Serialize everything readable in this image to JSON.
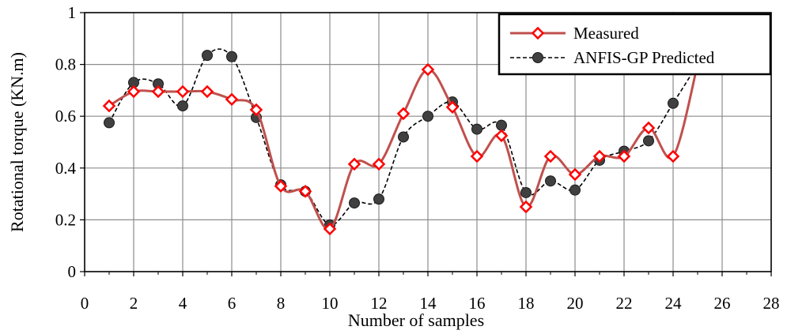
{
  "chart_data": {
    "type": "line",
    "title": "",
    "xlabel": "Number of samples",
    "ylabel": "Rotational torque (KN.m)",
    "xlim": [
      0,
      28
    ],
    "ylim": [
      0,
      1
    ],
    "x_ticks": [
      0,
      2,
      4,
      6,
      8,
      10,
      12,
      14,
      16,
      18,
      20,
      22,
      24,
      26,
      28
    ],
    "y_ticks": [
      0,
      0.2,
      0.4,
      0.6,
      0.8,
      1
    ],
    "x_tick_labels": [
      "0",
      "2",
      "4",
      "6",
      "8",
      "10",
      "12",
      "14",
      "16",
      "18",
      "20",
      "22",
      "24",
      "26",
      "28"
    ],
    "y_tick_labels": [
      "0",
      "0.2",
      "0.4",
      "0.6",
      "0.8",
      "1"
    ],
    "grid": true,
    "legend_position": "top-right",
    "x": [
      1,
      2,
      3,
      4,
      5,
      6,
      7,
      8,
      9,
      10,
      11,
      12,
      13,
      14,
      15,
      16,
      17,
      18,
      19,
      20,
      21,
      22,
      23,
      24,
      25
    ],
    "series": [
      {
        "name": "Measured",
        "style": "smooth line with diamond markers",
        "color": "#c0504d",
        "marker_color": "#ff0000",
        "values": [
          0.64,
          0.695,
          0.695,
          0.695,
          0.695,
          0.665,
          0.625,
          0.33,
          0.31,
          0.165,
          0.415,
          0.415,
          0.61,
          0.78,
          0.635,
          0.445,
          0.525,
          0.25,
          0.445,
          0.375,
          0.445,
          0.445,
          0.555,
          0.445,
          0.8
        ]
      },
      {
        "name": "ANFIS-GP Predicted",
        "style": "dashed line with circle markers",
        "color": "#000000",
        "marker_color": "#404040",
        "values": [
          0.575,
          0.73,
          0.725,
          0.64,
          0.835,
          0.83,
          0.595,
          0.335,
          0.31,
          0.18,
          0.265,
          0.28,
          0.52,
          0.6,
          0.655,
          0.55,
          0.565,
          0.305,
          0.35,
          0.315,
          0.43,
          0.465,
          0.505,
          0.65,
          0.8
        ]
      }
    ]
  }
}
